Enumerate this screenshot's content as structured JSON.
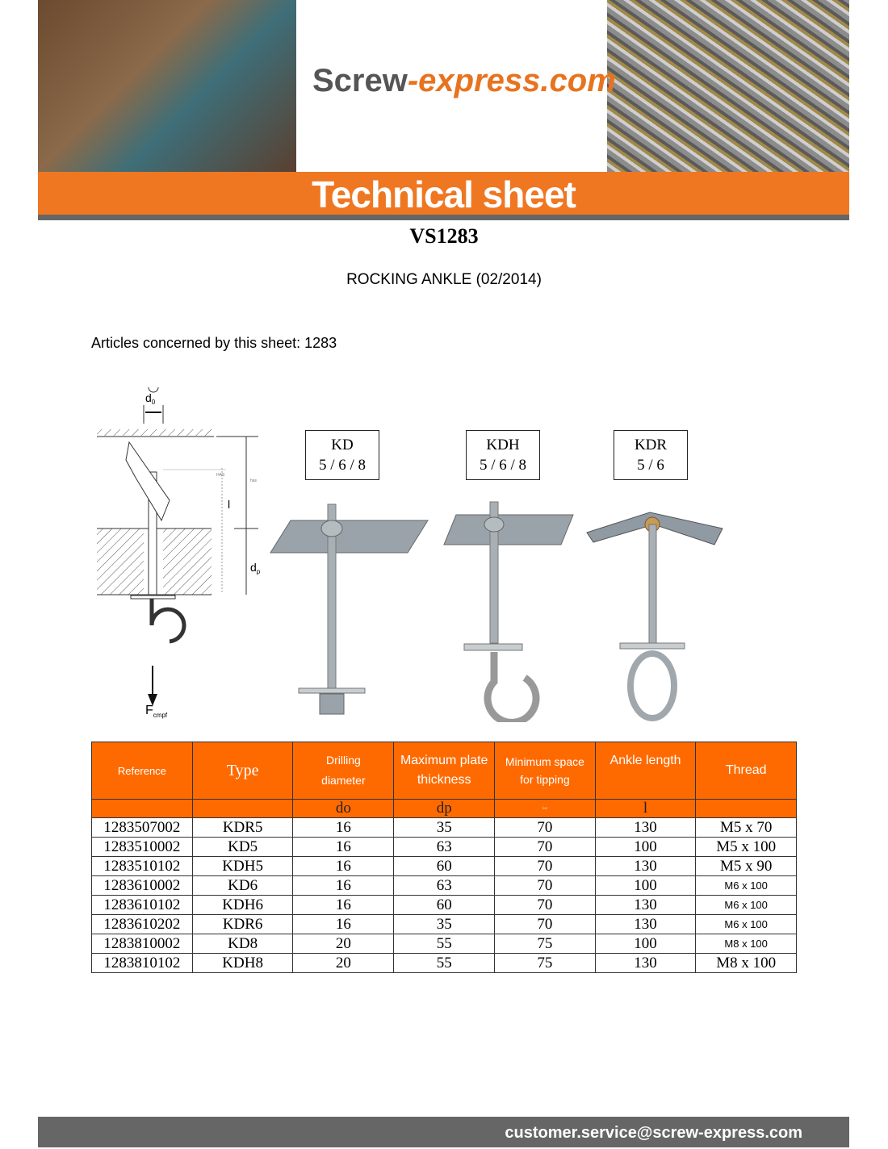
{
  "banner": {
    "logo_main": "Screw",
    "logo_accent": "-express.com",
    "title": "Technical sheet"
  },
  "sheet_code": "VS1283",
  "subtitle": "ROCKING ANKLE (02/2014)",
  "articles": "Articles concerned by this sheet: 1283",
  "diagram": {
    "do": "d",
    "do_sub": "0",
    "dp": "d",
    "dp_sub": "p",
    "l": "l",
    "force": "F",
    "force_sub": "cmpf",
    "has": "has",
    "HAS": "HAS"
  },
  "types": [
    {
      "name": "KD",
      "sizes": "5 / 6 / 8"
    },
    {
      "name": "KDH",
      "sizes": "5 / 6 / 8"
    },
    {
      "name": "KDR",
      "sizes": "5 / 6"
    }
  ],
  "table": {
    "headers": [
      "Reference",
      "Type",
      "Drilling diameter",
      "Maximum plate thickness",
      "Minimum space for tipping",
      "Ankle length",
      "Thread"
    ],
    "symbols": [
      "",
      "",
      "do",
      "dp",
      "has",
      "l",
      ""
    ],
    "rows": [
      [
        "1283507002",
        "KDR5",
        "16",
        "35",
        "70",
        "130",
        "M5 x 70"
      ],
      [
        "1283510002",
        "KD5",
        "16",
        "63",
        "70",
        "100",
        "M5 x 100"
      ],
      [
        "1283510102",
        "KDH5",
        "16",
        "60",
        "70",
        "130",
        "M5 x 90"
      ],
      [
        "1283610002",
        "KD6",
        "16",
        "63",
        "70",
        "100",
        "M6 x 100"
      ],
      [
        "1283610102",
        "KDH6",
        "16",
        "60",
        "70",
        "130",
        "M6 x 100"
      ],
      [
        "1283610202",
        "KDR6",
        "16",
        "35",
        "70",
        "130",
        "M6 x 100"
      ],
      [
        "1283810002",
        "KD8",
        "20",
        "55",
        "75",
        "100",
        "M8 x 100"
      ],
      [
        "1283810102",
        "KDH8",
        "20",
        "55",
        "75",
        "130",
        "M8 x 100"
      ]
    ]
  },
  "footer": "customer.service@screw-express.com",
  "colors": {
    "accent": "#ef7722",
    "table_header": "#ff6a00",
    "footer": "#666666"
  }
}
